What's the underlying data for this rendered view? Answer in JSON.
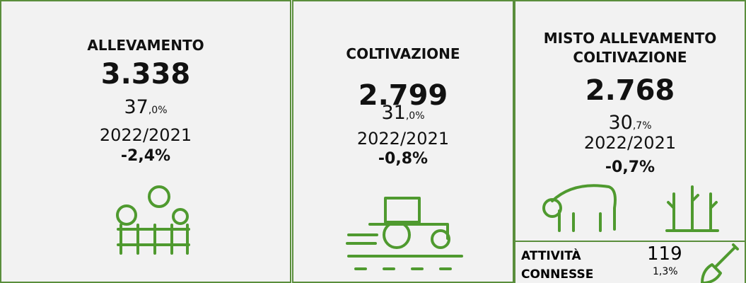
{
  "panels": [
    {
      "title": "ALLEVAMENTO",
      "count": "3.338",
      "share_int": "37",
      "share_dec": ",0%",
      "period": "2022/2021",
      "change": "-2,4%"
    },
    {
      "title": "COLTIVAZIONE",
      "count": "2.799",
      "share_int": "31",
      "share_dec": ",0%",
      "period": "2022/2021",
      "change": "-0,8%"
    },
    {
      "title_lines": [
        "MISTO ALLEVAMENTO",
        "COLTIVAZIONE"
      ],
      "count": "2.768",
      "share_int": "30",
      "share_dec": ",7%",
      "period": "2022/2021",
      "change": "-0,7%"
    }
  ],
  "connected": {
    "title_lines": [
      "ATTIVITÀ",
      "CONNESSE"
    ],
    "count": "119",
    "share": "1,3%"
  }
}
